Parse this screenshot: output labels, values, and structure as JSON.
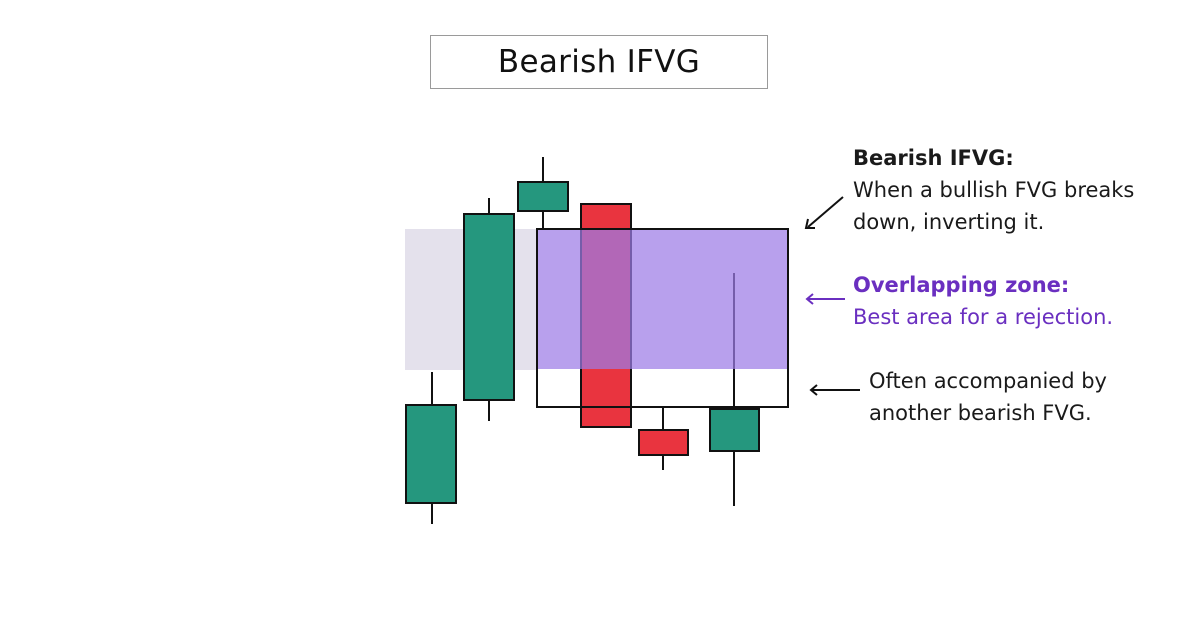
{
  "title": "Bearish IFVG",
  "annotations": {
    "ifvg": {
      "heading": "Bearish IFVG:",
      "line1": "When a bullish FVG breaks",
      "line2": "down, inverting it."
    },
    "overlap": {
      "heading": "Overlapping zone:",
      "line1": "Best area for a rejection."
    },
    "bearish_fvg": {
      "line1": "Often accompanied by",
      "line2": "another bearish FVG."
    }
  },
  "colors": {
    "bullish": "#25977e",
    "bearish": "#e9343f",
    "overlap_zone": "#b9a3ee",
    "fvg_zone": "#e4e1ec",
    "purple_text": "#6a2fc0",
    "outline": "#111111"
  }
}
